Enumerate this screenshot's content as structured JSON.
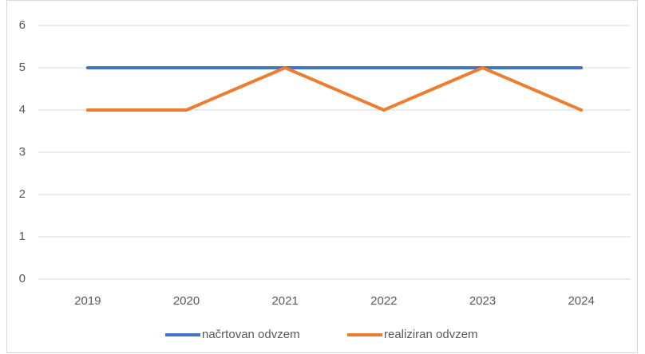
{
  "chart_data": {
    "type": "line",
    "categories": [
      "2019",
      "2020",
      "2021",
      "2022",
      "2023",
      "2024"
    ],
    "series": [
      {
        "name": "načrtovan odvzem",
        "color": "#4472c4",
        "values": [
          5,
          5,
          5,
          5,
          5,
          5
        ]
      },
      {
        "name": "realiziran odvzem",
        "color": "#ed7d31",
        "values": [
          4,
          4,
          5,
          4,
          5,
          4
        ]
      }
    ],
    "ylim": [
      0,
      6
    ],
    "yticks": [
      0,
      1,
      2,
      3,
      4,
      5,
      6
    ],
    "grid": true,
    "legend": "bottom"
  }
}
